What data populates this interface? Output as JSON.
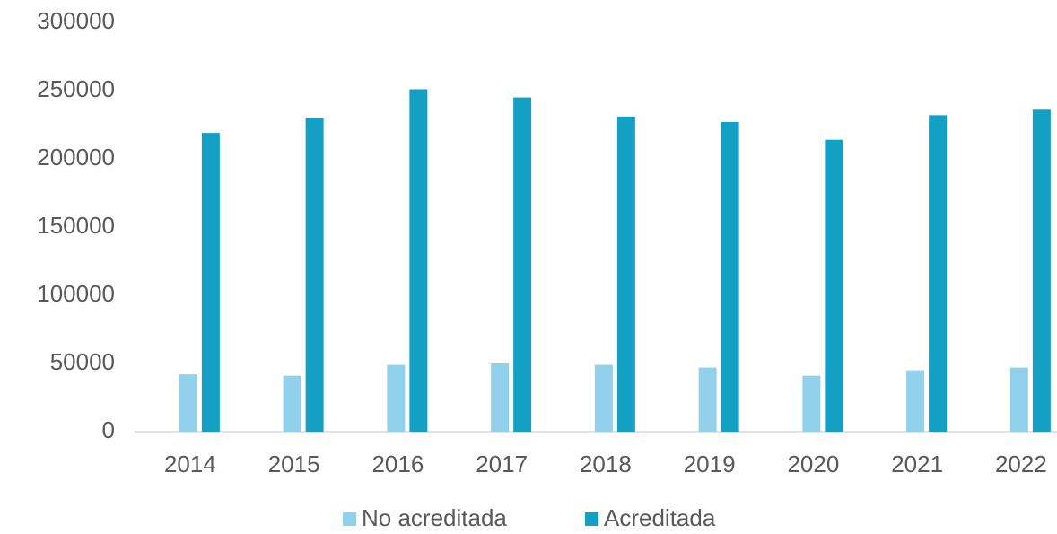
{
  "chart_data": {
    "type": "bar",
    "categories": [
      "2014",
      "2015",
      "2016",
      "2017",
      "2018",
      "2019",
      "2020",
      "2021",
      "2022"
    ],
    "series": [
      {
        "name": "No acreditada",
        "color": "#92d1ec",
        "values": [
          42000,
          41000,
          49000,
          50000,
          49000,
          47000,
          41000,
          45000,
          47000
        ]
      },
      {
        "name": "Acreditada",
        "color": "#14a0c4",
        "values": [
          219000,
          230000,
          251000,
          245000,
          231000,
          227000,
          214000,
          232000,
          236000
        ]
      }
    ],
    "ylim": [
      0,
      300000
    ],
    "yticks": [
      0,
      50000,
      100000,
      150000,
      200000,
      250000,
      300000
    ],
    "grid": false,
    "legend": "bottom"
  }
}
